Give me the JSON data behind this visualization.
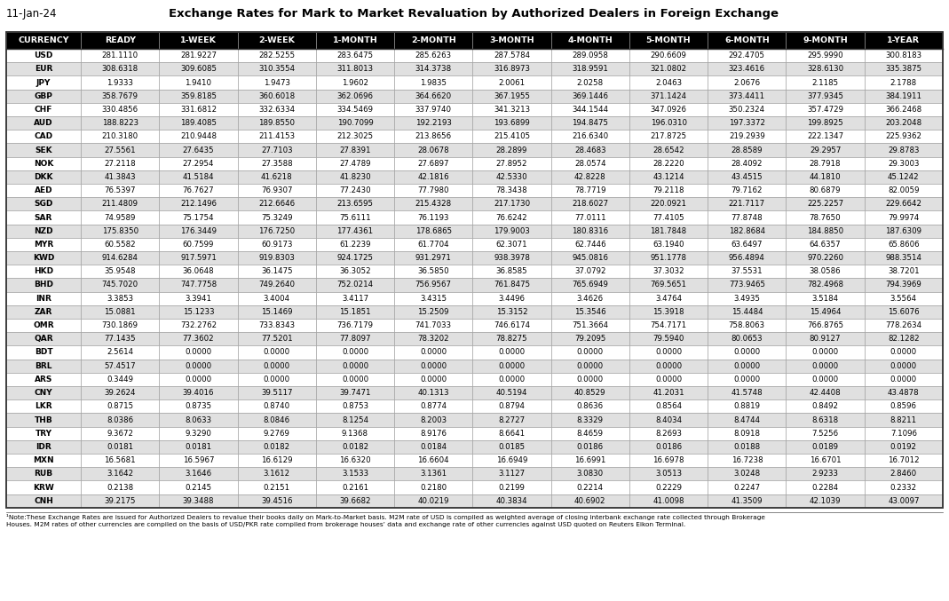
{
  "title": "Exchange Rates for Mark to Market Revaluation by Authorized Dealers in Foreign Exchange",
  "date": "11-Jan-24",
  "columns": [
    "CURRENCY",
    "READY",
    "1-WEEK",
    "2-WEEK",
    "1-MONTH",
    "2-MONTH",
    "3-MONTH",
    "4-MONTH",
    "5-MONTH",
    "6-MONTH",
    "9-MONTH",
    "1-YEAR"
  ],
  "rows": [
    [
      "USD",
      "281.1110",
      "281.9227",
      "282.5255",
      "283.6475",
      "285.6263",
      "287.5784",
      "289.0958",
      "290.6609",
      "292.4705",
      "295.9990",
      "300.8183"
    ],
    [
      "EUR",
      "308.6318",
      "309.6085",
      "310.3554",
      "311.8013",
      "314.3738",
      "316.8973",
      "318.9591",
      "321.0802",
      "323.4616",
      "328.6130",
      "335.3875"
    ],
    [
      "JPY",
      "1.9333",
      "1.9410",
      "1.9473",
      "1.9602",
      "1.9835",
      "2.0061",
      "2.0258",
      "2.0463",
      "2.0676",
      "2.1185",
      "2.1788"
    ],
    [
      "GBP",
      "358.7679",
      "359.8185",
      "360.6018",
      "362.0696",
      "364.6620",
      "367.1955",
      "369.1446",
      "371.1424",
      "373.4411",
      "377.9345",
      "384.1911"
    ],
    [
      "CHF",
      "330.4856",
      "331.6812",
      "332.6334",
      "334.5469",
      "337.9740",
      "341.3213",
      "344.1544",
      "347.0926",
      "350.2324",
      "357.4729",
      "366.2468"
    ],
    [
      "AUD",
      "188.8223",
      "189.4085",
      "189.8550",
      "190.7099",
      "192.2193",
      "193.6899",
      "194.8475",
      "196.0310",
      "197.3372",
      "199.8925",
      "203.2048"
    ],
    [
      "CAD",
      "210.3180",
      "210.9448",
      "211.4153",
      "212.3025",
      "213.8656",
      "215.4105",
      "216.6340",
      "217.8725",
      "219.2939",
      "222.1347",
      "225.9362"
    ],
    [
      "SEK",
      "27.5561",
      "27.6435",
      "27.7103",
      "27.8391",
      "28.0678",
      "28.2899",
      "28.4683",
      "28.6542",
      "28.8589",
      "29.2957",
      "29.8783"
    ],
    [
      "NOK",
      "27.2118",
      "27.2954",
      "27.3588",
      "27.4789",
      "27.6897",
      "27.8952",
      "28.0574",
      "28.2220",
      "28.4092",
      "28.7918",
      "29.3003"
    ],
    [
      "DKK",
      "41.3843",
      "41.5184",
      "41.6218",
      "41.8230",
      "42.1816",
      "42.5330",
      "42.8228",
      "43.1214",
      "43.4515",
      "44.1810",
      "45.1242"
    ],
    [
      "AED",
      "76.5397",
      "76.7627",
      "76.9307",
      "77.2430",
      "77.7980",
      "78.3438",
      "78.7719",
      "79.2118",
      "79.7162",
      "80.6879",
      "82.0059"
    ],
    [
      "SGD",
      "211.4809",
      "212.1496",
      "212.6646",
      "213.6595",
      "215.4328",
      "217.1730",
      "218.6027",
      "220.0921",
      "221.7117",
      "225.2257",
      "229.6642"
    ],
    [
      "SAR",
      "74.9589",
      "75.1754",
      "75.3249",
      "75.6111",
      "76.1193",
      "76.6242",
      "77.0111",
      "77.4105",
      "77.8748",
      "78.7650",
      "79.9974"
    ],
    [
      "NZD",
      "175.8350",
      "176.3449",
      "176.7250",
      "177.4361",
      "178.6865",
      "179.9003",
      "180.8316",
      "181.7848",
      "182.8684",
      "184.8850",
      "187.6309"
    ],
    [
      "MYR",
      "60.5582",
      "60.7599",
      "60.9173",
      "61.2239",
      "61.7704",
      "62.3071",
      "62.7446",
      "63.1940",
      "63.6497",
      "64.6357",
      "65.8606"
    ],
    [
      "KWD",
      "914.6284",
      "917.5971",
      "919.8303",
      "924.1725",
      "931.2971",
      "938.3978",
      "945.0816",
      "951.1778",
      "956.4894",
      "970.2260",
      "988.3514"
    ],
    [
      "HKD",
      "35.9548",
      "36.0648",
      "36.1475",
      "36.3052",
      "36.5850",
      "36.8585",
      "37.0792",
      "37.3032",
      "37.5531",
      "38.0586",
      "38.7201"
    ],
    [
      "BHD",
      "745.7020",
      "747.7758",
      "749.2640",
      "752.0214",
      "756.9567",
      "761.8475",
      "765.6949",
      "769.5651",
      "773.9465",
      "782.4968",
      "794.3969"
    ],
    [
      "INR",
      "3.3853",
      "3.3941",
      "3.4004",
      "3.4117",
      "3.4315",
      "3.4496",
      "3.4626",
      "3.4764",
      "3.4935",
      "3.5184",
      "3.5564"
    ],
    [
      "ZAR",
      "15.0881",
      "15.1233",
      "15.1469",
      "15.1851",
      "15.2509",
      "15.3152",
      "15.3546",
      "15.3918",
      "15.4484",
      "15.4964",
      "15.6076"
    ],
    [
      "OMR",
      "730.1869",
      "732.2762",
      "733.8343",
      "736.7179",
      "741.7033",
      "746.6174",
      "751.3664",
      "754.7171",
      "758.8063",
      "766.8765",
      "778.2634"
    ],
    [
      "QAR",
      "77.1435",
      "77.3602",
      "77.5201",
      "77.8097",
      "78.3202",
      "78.8275",
      "79.2095",
      "79.5940",
      "80.0653",
      "80.9127",
      "82.1282"
    ],
    [
      "BDT",
      "2.5614",
      "0.0000",
      "0.0000",
      "0.0000",
      "0.0000",
      "0.0000",
      "0.0000",
      "0.0000",
      "0.0000",
      "0.0000",
      "0.0000"
    ],
    [
      "BRL",
      "57.4517",
      "0.0000",
      "0.0000",
      "0.0000",
      "0.0000",
      "0.0000",
      "0.0000",
      "0.0000",
      "0.0000",
      "0.0000",
      "0.0000"
    ],
    [
      "ARS",
      "0.3449",
      "0.0000",
      "0.0000",
      "0.0000",
      "0.0000",
      "0.0000",
      "0.0000",
      "0.0000",
      "0.0000",
      "0.0000",
      "0.0000"
    ],
    [
      "CNY",
      "39.2624",
      "39.4016",
      "39.5117",
      "39.7471",
      "40.1313",
      "40.5194",
      "40.8529",
      "41.2031",
      "41.5748",
      "42.4408",
      "43.4878"
    ],
    [
      "LKR",
      "0.8715",
      "0.8735",
      "0.8740",
      "0.8753",
      "0.8774",
      "0.8794",
      "0.8636",
      "0.8564",
      "0.8819",
      "0.8492",
      "0.8596"
    ],
    [
      "THB",
      "8.0386",
      "8.0633",
      "8.0846",
      "8.1254",
      "8.2003",
      "8.2727",
      "8.3329",
      "8.4034",
      "8.4744",
      "8.6318",
      "8.8211"
    ],
    [
      "TRY",
      "9.3672",
      "9.3290",
      "9.2769",
      "9.1368",
      "8.9176",
      "8.6641",
      "8.4659",
      "8.2693",
      "8.0918",
      "7.5256",
      "7.1096"
    ],
    [
      "IDR",
      "0.0181",
      "0.0181",
      "0.0182",
      "0.0182",
      "0.0184",
      "0.0185",
      "0.0186",
      "0.0186",
      "0.0188",
      "0.0189",
      "0.0192"
    ],
    [
      "MXN",
      "16.5681",
      "16.5967",
      "16.6129",
      "16.6320",
      "16.6604",
      "16.6949",
      "16.6991",
      "16.6978",
      "16.7238",
      "16.6701",
      "16.7012"
    ],
    [
      "RUB",
      "3.1642",
      "3.1646",
      "3.1612",
      "3.1533",
      "3.1361",
      "3.1127",
      "3.0830",
      "3.0513",
      "3.0248",
      "2.9233",
      "2.8460"
    ],
    [
      "KRW",
      "0.2138",
      "0.2145",
      "0.2151",
      "0.2161",
      "0.2180",
      "0.2199",
      "0.2214",
      "0.2229",
      "0.2247",
      "0.2284",
      "0.2332"
    ],
    [
      "CNH",
      "39.2175",
      "39.3488",
      "39.4516",
      "39.6682",
      "40.0219",
      "40.3834",
      "40.6902",
      "41.0098",
      "41.3509",
      "42.1039",
      "43.0097"
    ]
  ],
  "note_line1": "¹Note:These Exchange Rates are issued for Authorized Dealers to revalue their books daily on Mark-to-Market basis. M2M rate of USD is compiled as weighted average of closing interbank exchange rate collected through Brokerage",
  "note_line2": "Houses. M2M rates of other currencies are compiled on the basis of USD/PKR rate compiled from brokerage houses’ data and exchange rate of other currencies against USD quoted on Reuters Eikon Terminal.",
  "header_bg": "#000000",
  "header_fg": "#ffffff",
  "alt_row_bg": "#e0e0e0",
  "normal_row_bg": "#ffffff"
}
